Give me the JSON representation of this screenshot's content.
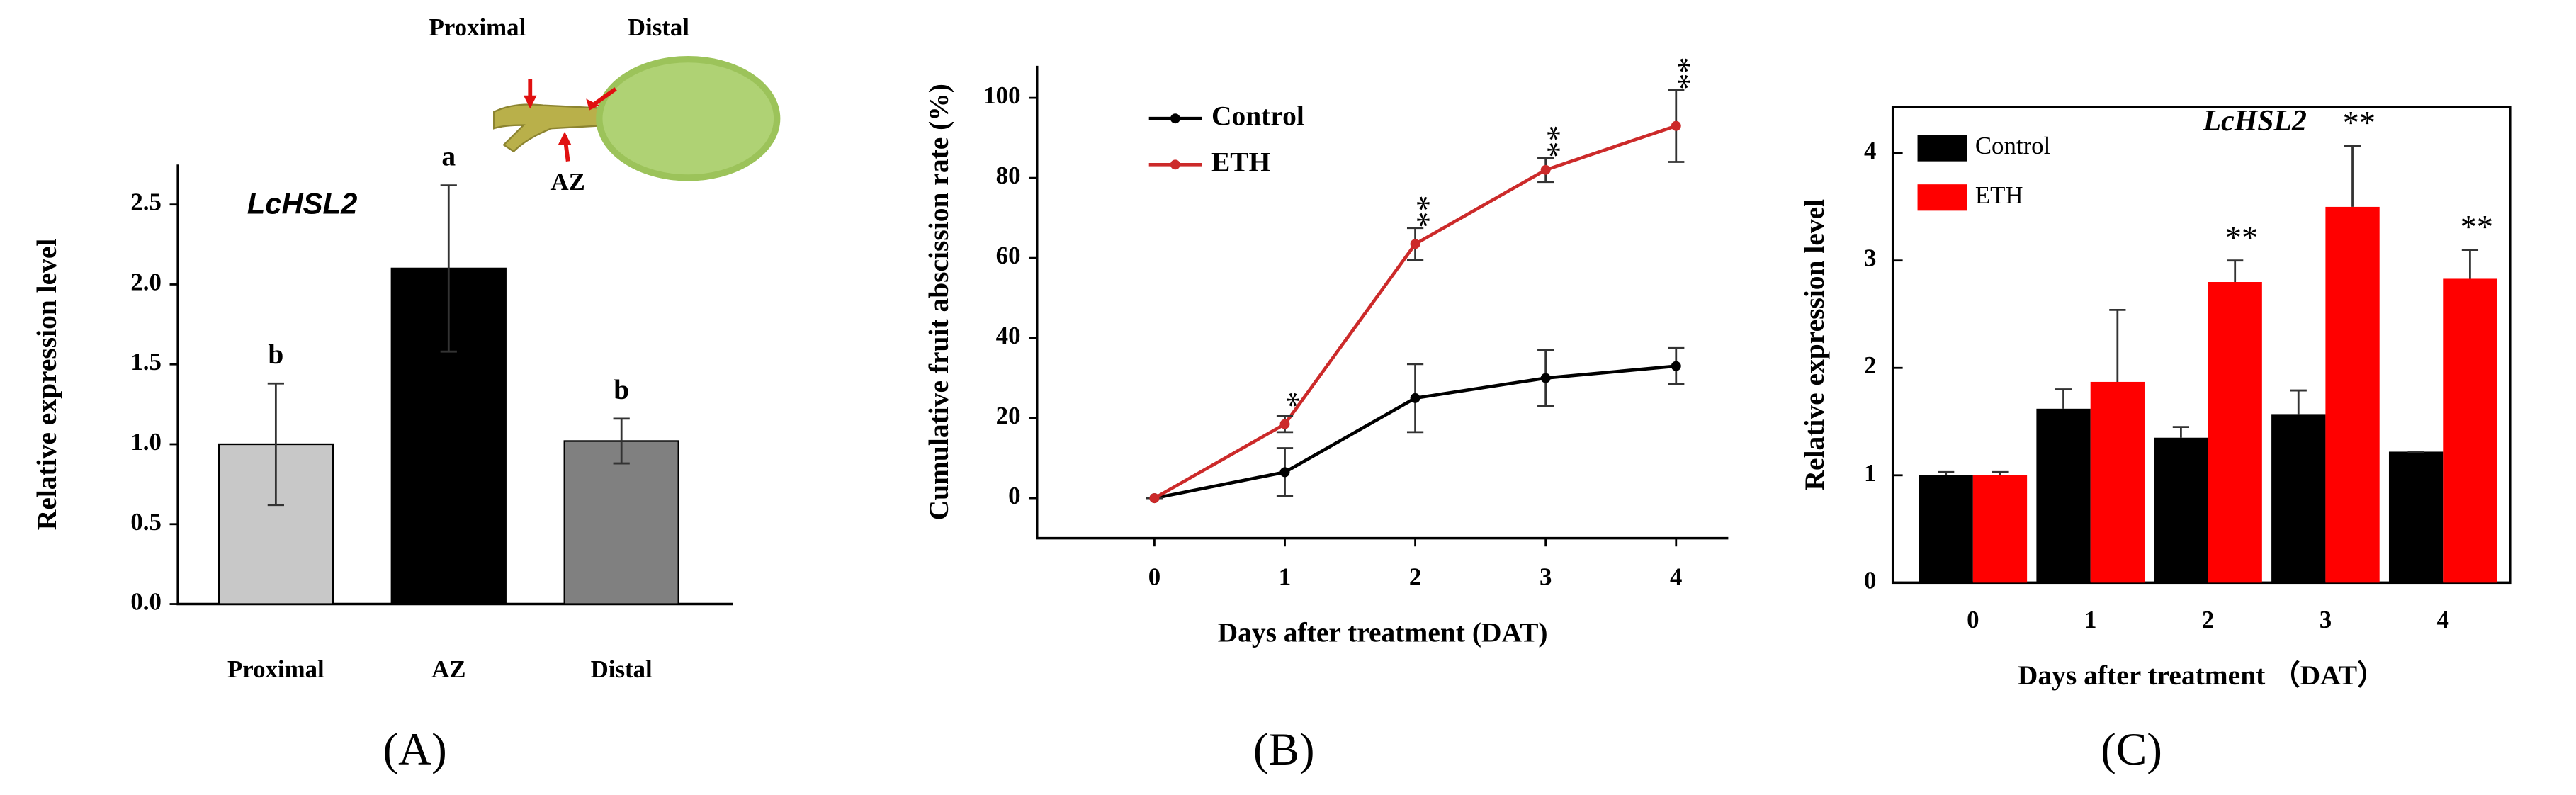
{
  "chart_data": [
    {
      "type": "bar",
      "title": "LcHSL2",
      "y_label": "Relative expression level",
      "categories": [
        "Proximal",
        "AZ",
        "Distal"
      ],
      "values": [
        1.0,
        2.1,
        1.02
      ],
      "errors": [
        0.38,
        0.52,
        0.14
      ],
      "colors": [
        "#c8c8c8",
        "#000000",
        "#808080"
      ],
      "letters": [
        "b",
        "a",
        "b"
      ],
      "ylim": [
        0,
        2.75
      ],
      "yticks": [
        {
          "value": 0,
          "label": "0.0"
        },
        {
          "value": 0.5,
          "label": "0.5"
        },
        {
          "value": 1,
          "label": "1.0"
        },
        {
          "value": 1.5,
          "label": "1.5"
        },
        {
          "value": 2,
          "label": "2.0"
        },
        {
          "value": 2.5,
          "label": "2.5"
        }
      ],
      "inset_labels": [
        "Proximal",
        "Distal",
        "AZ"
      ],
      "panel": "(A)"
    },
    {
      "type": "line",
      "x_label": "Days  after treatment (DAT)",
      "y_label": "Cumulative fruit  abscission rate (%)",
      "x": [
        0,
        1,
        2,
        3,
        4
      ],
      "series": [
        {
          "name": "Control",
          "color": "#000000",
          "values": [
            0,
            6.5,
            25,
            30,
            33
          ],
          "errors": [
            0,
            6,
            8.5,
            7,
            4.5
          ],
          "significance": [
            null,
            null,
            null,
            null,
            null
          ]
        },
        {
          "name": "ETH",
          "color": "#cc2a2a",
          "values": [
            0,
            18.5,
            63.5,
            82,
            93
          ],
          "errors": [
            0,
            2,
            4,
            3,
            9
          ],
          "significance": [
            null,
            "*",
            "**",
            "**",
            "**"
          ]
        }
      ],
      "xlim": [
        -0.9,
        4.4
      ],
      "xticks": [
        0,
        1,
        2,
        3,
        4
      ],
      "ylim": [
        -10,
        108
      ],
      "yticks": [
        0,
        20,
        40,
        60,
        80,
        100
      ],
      "panel": "(B)"
    },
    {
      "type": "grouped_bar",
      "title": "LcHSL2",
      "x_label": "Days after treatment （DAT）",
      "y_label": "Relative expression level",
      "categories": [
        "0",
        "1",
        "2",
        "3",
        "4"
      ],
      "series": [
        {
          "name": "Control",
          "color": "#000000",
          "values": [
            1.0,
            1.62,
            1.35,
            1.57,
            1.22
          ],
          "errors": [
            0.03,
            0.18,
            0.1,
            0.22,
            0
          ],
          "significance": [
            null,
            null,
            null,
            null,
            null
          ]
        },
        {
          "name": "ETH",
          "color": "#ff0000",
          "values": [
            1.0,
            1.87,
            2.8,
            3.5,
            2.83
          ],
          "errors": [
            0.03,
            0.67,
            0.2,
            0.57,
            0.27
          ],
          "significance": [
            null,
            null,
            "**",
            "**",
            "**"
          ]
        }
      ],
      "ylim": [
        0,
        4.43
      ],
      "yticks": [
        0,
        1,
        2,
        3,
        4
      ],
      "panel": "(C)"
    }
  ]
}
